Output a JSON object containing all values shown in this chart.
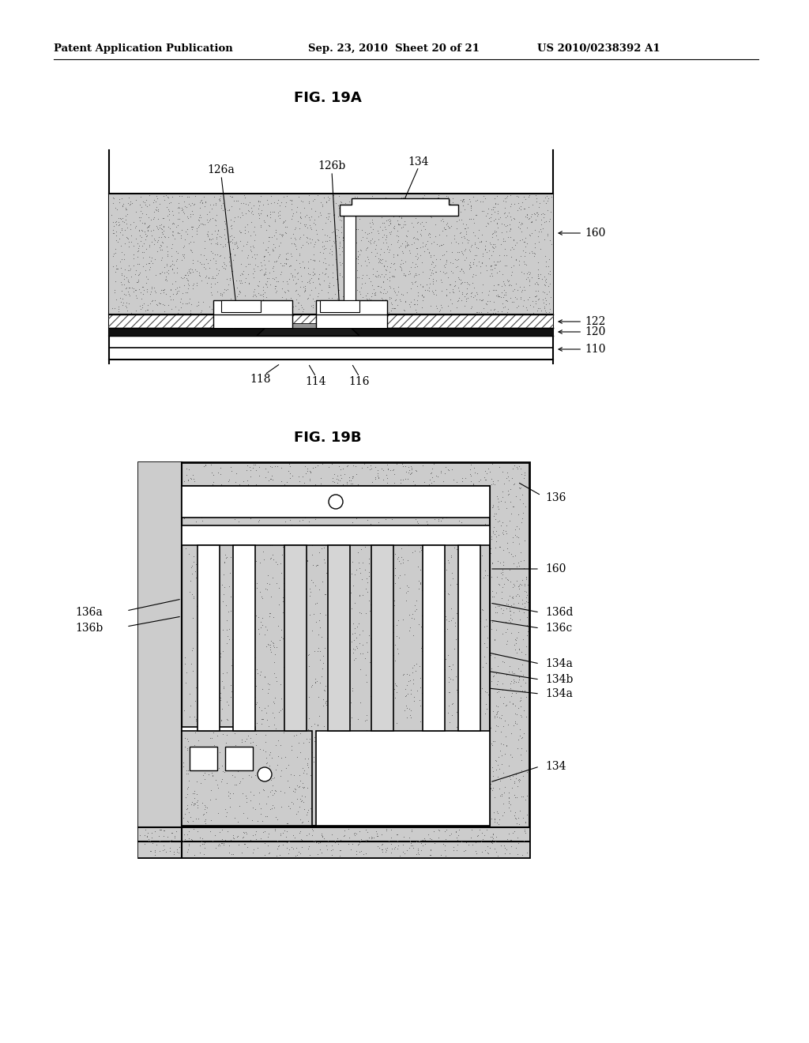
{
  "header_left": "Patent Application Publication",
  "header_mid": "Sep. 23, 2010  Sheet 20 of 21",
  "header_right": "US 2010/0238392 A1",
  "fig_title_a": "FIG. 19A",
  "fig_title_b": "FIG. 19B",
  "bg_color": "#ffffff",
  "stipple_gray": "#cccccc",
  "stipple_dot": "#666666",
  "hatch_color": "#000000",
  "line_color": "#000000",
  "black_layer": "#111111"
}
